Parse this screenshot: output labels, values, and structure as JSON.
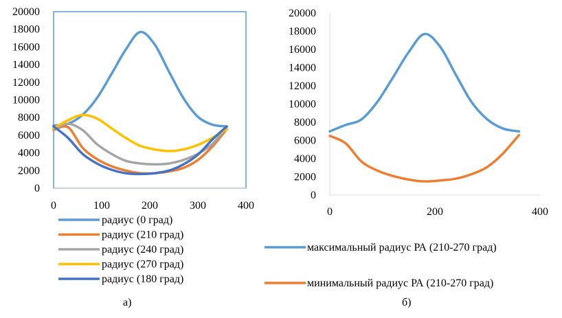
{
  "chart_data": [
    {
      "type": "line",
      "panel_label": "а)",
      "xlim": [
        0,
        400
      ],
      "ylim": [
        0,
        20000
      ],
      "xticks": [
        0,
        100,
        200,
        300,
        400
      ],
      "yticks": [
        0,
        2000,
        4000,
        6000,
        8000,
        10000,
        12000,
        14000,
        16000,
        18000,
        20000
      ],
      "grid": false,
      "legend_position": "bottom",
      "series": [
        {
          "name": "радиус (0 град)",
          "color": "#5B9BD5",
          "x": [
            0,
            30,
            60,
            90,
            120,
            150,
            180,
            210,
            240,
            270,
            300,
            330,
            360
          ],
          "y": [
            7100,
            7300,
            8300,
            10200,
            12900,
            15700,
            17700,
            16300,
            13200,
            10200,
            8100,
            7200,
            7000
          ]
        },
        {
          "name": "радиус (210 град)",
          "color": "#ED7D31",
          "x": [
            0,
            30,
            60,
            90,
            120,
            150,
            180,
            210,
            240,
            270,
            300,
            330,
            360
          ],
          "y": [
            6600,
            6900,
            4600,
            3300,
            2500,
            2000,
            1700,
            1700,
            1900,
            2300,
            3200,
            4700,
            6700
          ]
        },
        {
          "name": "радиус (240 град)",
          "color": "#A5A5A5",
          "x": [
            0,
            30,
            60,
            90,
            120,
            150,
            180,
            210,
            240,
            270,
            300,
            330,
            360
          ],
          "y": [
            6700,
            7300,
            6600,
            5000,
            3900,
            3100,
            2800,
            2700,
            2800,
            3200,
            3900,
            5000,
            6900
          ]
        },
        {
          "name": "радиус (270 град)",
          "color": "#FFC000",
          "x": [
            0,
            30,
            60,
            90,
            120,
            150,
            180,
            210,
            240,
            270,
            300,
            330,
            360
          ],
          "y": [
            6800,
            7700,
            8300,
            7900,
            6800,
            5700,
            4800,
            4400,
            4200,
            4400,
            4900,
            5700,
            6700
          ]
        },
        {
          "name": "радиус (180 град)",
          "color": "#4472C4",
          "x": [
            0,
            30,
            60,
            90,
            120,
            150,
            180,
            210,
            240,
            270,
            300,
            330,
            360
          ],
          "y": [
            7000,
            5700,
            3900,
            2800,
            2100,
            1700,
            1600,
            1700,
            2000,
            2700,
            3800,
            5500,
            7000
          ]
        }
      ]
    },
    {
      "type": "line",
      "panel_label": "б)",
      "xlim": [
        0,
        400
      ],
      "ylim": [
        0,
        20000
      ],
      "xticks": [
        0,
        200,
        400
      ],
      "yticks": [
        0,
        2000,
        4000,
        6000,
        8000,
        10000,
        12000,
        14000,
        16000,
        18000,
        20000
      ],
      "grid": false,
      "legend_position": "bottom",
      "series": [
        {
          "name": "максимальный радиус РА (210-270 град)",
          "color": "#5B9BD5",
          "x": [
            0,
            30,
            60,
            90,
            120,
            150,
            180,
            210,
            240,
            270,
            300,
            330,
            360
          ],
          "y": [
            7000,
            7700,
            8300,
            10200,
            12900,
            15700,
            17700,
            16300,
            13200,
            10200,
            8300,
            7300,
            7000
          ]
        },
        {
          "name": "минимальный радиус РА (210-270 град)",
          "color": "#ED7D31",
          "x": [
            0,
            30,
            60,
            90,
            120,
            150,
            180,
            210,
            240,
            270,
            300,
            330,
            360
          ],
          "y": [
            6500,
            5700,
            3700,
            2700,
            2100,
            1700,
            1500,
            1600,
            1800,
            2300,
            3100,
            4600,
            6600
          ]
        }
      ]
    }
  ]
}
